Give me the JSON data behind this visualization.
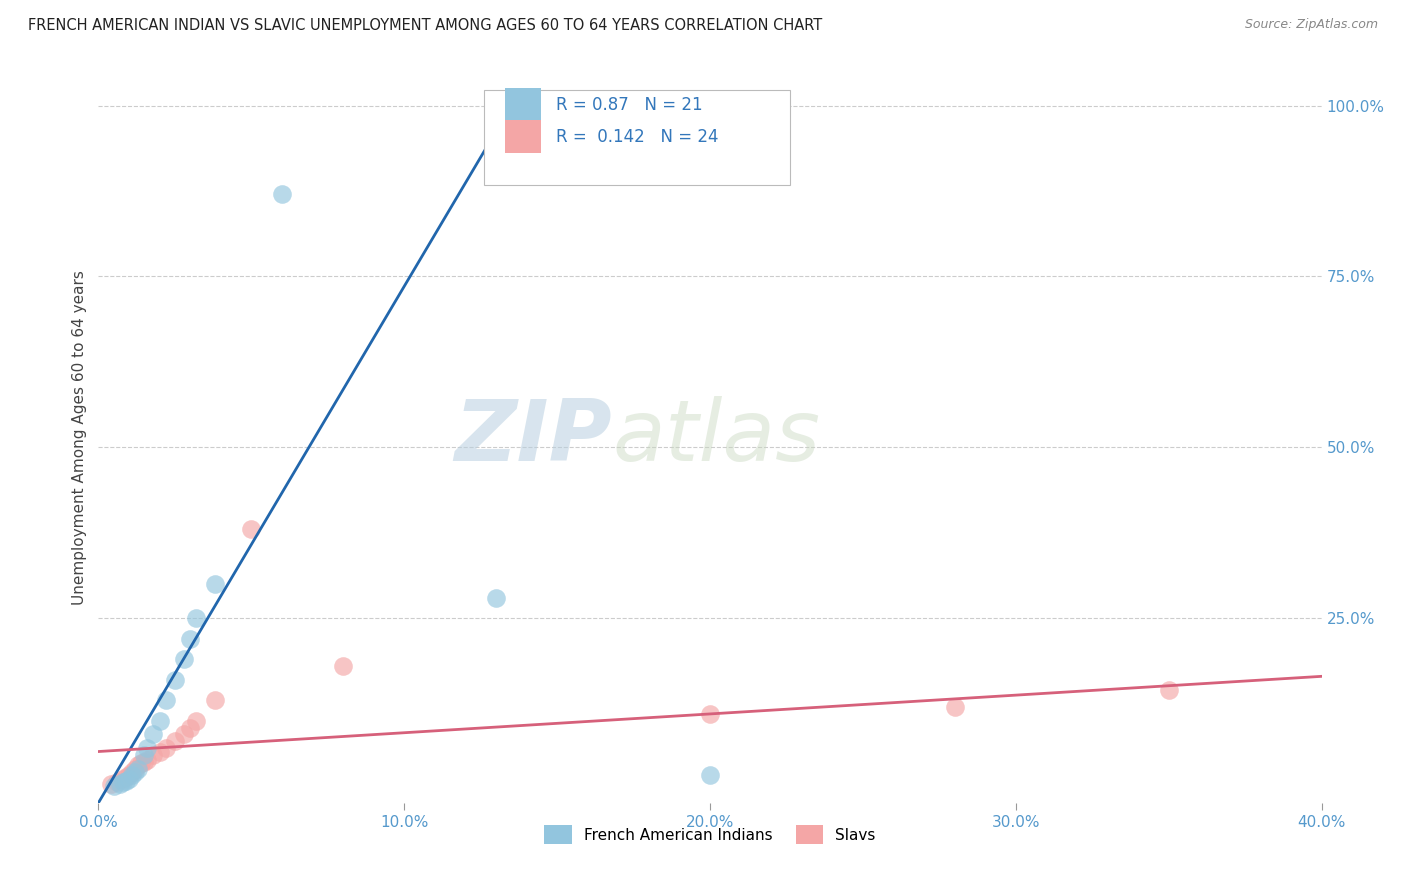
{
  "title": "FRENCH AMERICAN INDIAN VS SLAVIC UNEMPLOYMENT AMONG AGES 60 TO 64 YEARS CORRELATION CHART",
  "source": "Source: ZipAtlas.com",
  "ylabel": "Unemployment Among Ages 60 to 64 years",
  "xlim": [
    0.0,
    0.4
  ],
  "ylim": [
    -0.02,
    1.05
  ],
  "xtick_labels": [
    "0.0%",
    "10.0%",
    "20.0%",
    "30.0%",
    "40.0%"
  ],
  "xtick_vals": [
    0.0,
    0.1,
    0.2,
    0.3,
    0.4
  ],
  "ytick_labels": [
    "100.0%",
    "75.0%",
    "50.0%",
    "25.0%"
  ],
  "ytick_vals": [
    1.0,
    0.75,
    0.5,
    0.25
  ],
  "legend_label1": "French American Indians",
  "legend_label2": "Slavs",
  "R1": 0.87,
  "N1": 21,
  "R2": 0.142,
  "N2": 24,
  "color1": "#92c5de",
  "color2": "#f4a6a6",
  "line_color1": "#2166ac",
  "line_color2": "#d6607a",
  "watermark_zip": "ZIP",
  "watermark_atlas": "atlas",
  "scatter1_x": [
    0.005,
    0.007,
    0.008,
    0.009,
    0.01,
    0.011,
    0.012,
    0.013,
    0.015,
    0.016,
    0.018,
    0.02,
    0.022,
    0.025,
    0.028,
    0.03,
    0.032,
    0.038,
    0.06,
    0.2,
    0.13
  ],
  "scatter1_y": [
    0.005,
    0.008,
    0.01,
    0.012,
    0.015,
    0.02,
    0.025,
    0.03,
    0.05,
    0.06,
    0.08,
    0.1,
    0.13,
    0.16,
    0.19,
    0.22,
    0.25,
    0.3,
    0.87,
    0.02,
    0.28
  ],
  "scatter2_x": [
    0.004,
    0.006,
    0.008,
    0.009,
    0.01,
    0.011,
    0.012,
    0.013,
    0.014,
    0.015,
    0.016,
    0.018,
    0.02,
    0.022,
    0.025,
    0.028,
    0.03,
    0.032,
    0.038,
    0.05,
    0.08,
    0.2,
    0.28,
    0.35
  ],
  "scatter2_y": [
    0.008,
    0.01,
    0.015,
    0.018,
    0.02,
    0.025,
    0.03,
    0.035,
    0.038,
    0.04,
    0.042,
    0.05,
    0.055,
    0.06,
    0.07,
    0.08,
    0.09,
    0.1,
    0.13,
    0.38,
    0.18,
    0.11,
    0.12,
    0.145
  ],
  "line1_x0": 0.0,
  "line1_y0": -0.02,
  "line1_x1": 0.135,
  "line1_y1": 1.0,
  "line2_x0": 0.0,
  "line2_y0": 0.055,
  "line2_x1": 0.4,
  "line2_y1": 0.165,
  "background_color": "#ffffff",
  "grid_color": "#cccccc",
  "title_color": "#222222",
  "axis_label_color": "#444444",
  "tick_color": "#5599cc"
}
